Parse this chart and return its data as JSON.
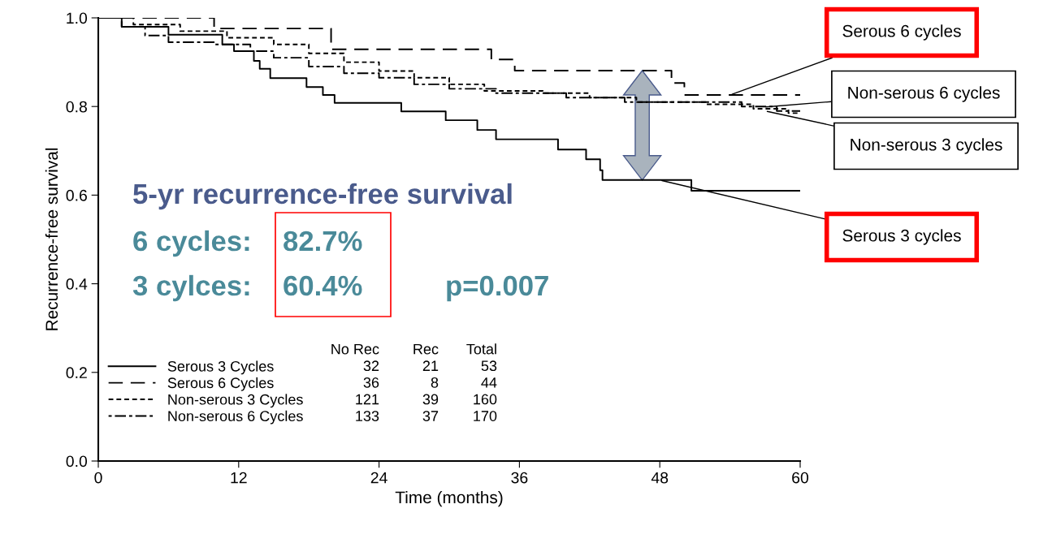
{
  "chart_data": {
    "type": "step",
    "xlabel": "Time (months)",
    "ylabel": "Recurrence-free survival",
    "xlim": [
      0,
      60
    ],
    "xticks": [
      0,
      12,
      24,
      36,
      48,
      60
    ],
    "ylim": [
      0,
      1.0
    ],
    "yticks": [
      {
        "value": 0,
        "label": "0.0"
      },
      0.2,
      0.4,
      0.6,
      0.8,
      {
        "value": 1,
        "label": "1.0"
      }
    ],
    "grid": false,
    "legend": "bottom left",
    "series": [
      {
        "name": "Serous 3 Cycles",
        "color": "#000000",
        "line_style": "solid",
        "x": [
          0,
          2.0,
          6.0,
          10.6,
          11.6,
          13.3,
          13.8,
          14.7,
          17.8,
          19.2,
          20.2,
          25.9,
          29.7,
          32.4,
          34.0,
          39.3,
          41.7,
          42.9,
          43.1,
          50.7,
          60
        ],
        "values": [
          1.0,
          0.98,
          0.962,
          0.94,
          0.925,
          0.903,
          0.885,
          0.864,
          0.844,
          0.826,
          0.808,
          0.789,
          0.769,
          0.747,
          0.726,
          0.703,
          0.681,
          0.656,
          0.634,
          0.61,
          0.61
        ]
      },
      {
        "name": "Serous 6 Cycles",
        "color": "#000000",
        "line_style": "dashed",
        "x": [
          0,
          9.9,
          19.9,
          33.6,
          35.6,
          49.0,
          50.1,
          60
        ],
        "values": [
          1.0,
          0.976,
          0.929,
          0.906,
          0.881,
          0.853,
          0.826,
          0.826
        ]
      },
      {
        "name": "Non-serous 3 Cycles",
        "color": "#000000",
        "line_style": "dotted",
        "x": [
          0,
          3,
          7,
          11,
          15,
          18,
          21,
          24,
          27,
          30,
          33,
          38,
          42,
          46,
          52,
          56,
          59,
          60
        ],
        "values": [
          1.0,
          0.985,
          0.97,
          0.955,
          0.94,
          0.92,
          0.9,
          0.88,
          0.865,
          0.85,
          0.835,
          0.83,
          0.82,
          0.81,
          0.805,
          0.795,
          0.785,
          0.785
        ]
      },
      {
        "name": "Non-serous 6 Cycles",
        "color": "#000000",
        "line_style": "dashdot",
        "x": [
          0,
          2,
          4,
          6,
          10,
          13,
          15,
          18,
          21,
          24,
          27,
          30,
          34,
          40,
          45,
          50,
          55,
          58,
          60
        ],
        "values": [
          1.0,
          0.98,
          0.96,
          0.945,
          0.94,
          0.925,
          0.91,
          0.89,
          0.875,
          0.865,
          0.85,
          0.84,
          0.83,
          0.82,
          0.81,
          0.81,
          0.8,
          0.79,
          0.79
        ]
      }
    ],
    "annotations": [
      "No Rec",
      "Rec",
      "Total",
      "32",
      "21",
      "53",
      "36",
      "8",
      "44",
      "121",
      "39",
      "160",
      "133",
      "37",
      "170",
      "5-yr recurrence-free survival",
      "6 cycles:",
      "82.7%",
      "3 cylces:",
      "60.4%",
      "p=0.007",
      {
        "text": "Serous 6 cycles",
        "x": 54,
        "y": 0.826
      },
      "Non-serous 6 cycles",
      {
        "text": "Non-serous 3 cycles",
        "x": 57,
        "y": 0.79
      },
      {
        "text": "Serous 3 cycles",
        "x": 48,
        "y": 0.634
      }
    ]
  }
}
